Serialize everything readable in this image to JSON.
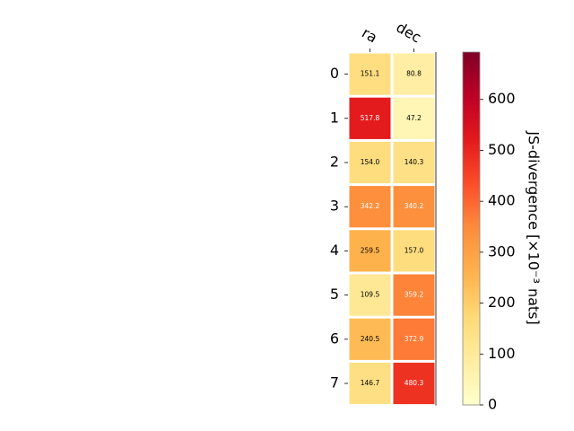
{
  "chart_data": {
    "type": "heatmap",
    "columns": [
      "ra",
      "dec"
    ],
    "rows": [
      "0",
      "1",
      "2",
      "3",
      "4",
      "5",
      "6",
      "7"
    ],
    "values": [
      [
        151.1,
        80.8
      ],
      [
        517.8,
        47.2
      ],
      [
        154.0,
        140.3
      ],
      [
        342.2,
        340.2
      ],
      [
        259.5,
        157.0
      ],
      [
        109.5,
        359.2
      ],
      [
        240.5,
        372.9
      ],
      [
        146.7,
        480.3
      ]
    ],
    "cell_labels": [
      [
        "151.1",
        "80.8"
      ],
      [
        "517.8",
        "47.2"
      ],
      [
        "154.0",
        "140.3"
      ],
      [
        "342.2",
        "340.2"
      ],
      [
        "259.5",
        "157.0"
      ],
      [
        "109.5",
        "359.2"
      ],
      [
        "240.5",
        "372.9"
      ],
      [
        "146.7",
        "480.3"
      ]
    ],
    "colorbar": {
      "label": "JS-divergence [×10⁻³ nats]",
      "ticks": [
        "0",
        "100",
        "200",
        "300",
        "400",
        "500",
        "600"
      ],
      "tick_values": [
        0,
        100,
        200,
        300,
        400,
        500,
        600
      ],
      "range": [
        0,
        693
      ],
      "colormap": "YlOrRd"
    },
    "grid": false,
    "legend": "right"
  }
}
